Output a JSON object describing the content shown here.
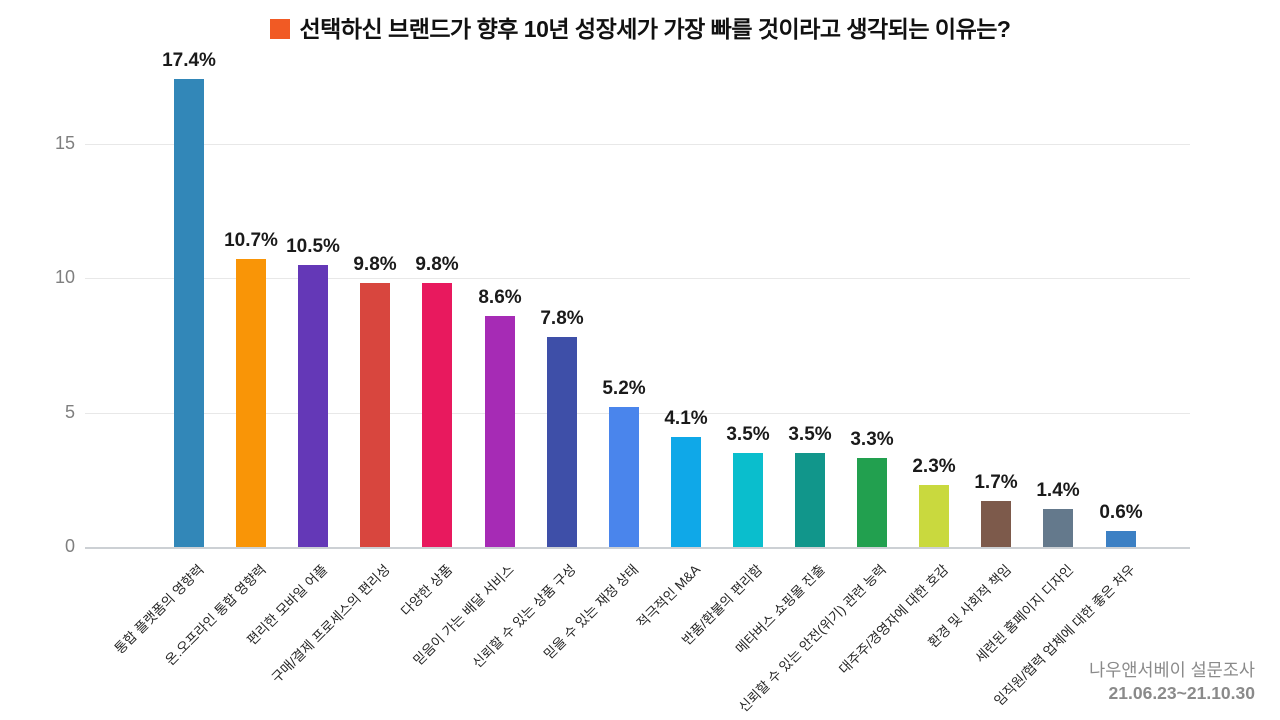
{
  "title": {
    "text": "선택하신 브랜드가 향후 10년 성장세가 가장 빠를 것이라고 생각되는 이유는?",
    "bullet_color": "#F15A24"
  },
  "footer": {
    "source": "나우앤서베이 설문조사",
    "period": "21.06.23~21.10.30"
  },
  "chart_data": {
    "type": "bar",
    "title": "선택하신 브랜드가 향후 10년 성장세가 가장 빠를 것이라고 생각되는 이유는?",
    "categories": [
      "통합 플랫폼의 영향력",
      "온.오프라인 통합 영향력",
      "편리한 모바일 어플",
      "구매/결제 프로세스의 편리성",
      "다양한 상품",
      "믿음이 가는 배달 서비스",
      "신뢰할 수 있는 상품 구성",
      "믿을 수 있는 재정 상태",
      "적극적인 M&A",
      "반품/환불의 편리함",
      "메타버스 쇼핑몰 진출",
      "신뢰할 수 있는 안전(위기) 관련 능력",
      "대주주/경영자에 대한 호감",
      "환경 및 사회적 책임",
      "세련된 홈페이지 디자인",
      "임직원/협력 업체에 대한 좋은 처우"
    ],
    "values": [
      17.4,
      10.7,
      10.5,
      9.8,
      9.8,
      8.6,
      7.8,
      5.2,
      4.1,
      3.5,
      3.5,
      3.3,
      2.3,
      1.7,
      1.4,
      0.6
    ],
    "value_labels": [
      "17.4%",
      "10.7%",
      "10.5%",
      "9.8%",
      "9.8%",
      "8.6%",
      "7.8%",
      "5.2%",
      "4.1%",
      "3.5%",
      "3.5%",
      "3.3%",
      "2.3%",
      "1.7%",
      "1.4%",
      "0.6%"
    ],
    "bar_colors": [
      "#3287B8",
      "#F99507",
      "#6438B7",
      "#D8463E",
      "#E8195E",
      "#A62BB5",
      "#3E4FA8",
      "#4A85EC",
      "#0FA8E8",
      "#0ABECD",
      "#11968B",
      "#22A04F",
      "#C9D93E",
      "#7D5A4B",
      "#64798C",
      "#3C80C4"
    ],
    "yticks": [
      0,
      5,
      10,
      15
    ],
    "ylim": [
      0,
      17.5
    ],
    "grid": true,
    "legend_position": "none",
    "xlabel": "",
    "ylabel": "",
    "gridline_color": "#e8e8e8",
    "baseline_color": "#ccd0d4",
    "tick_label_color": "#7f7f7f"
  }
}
